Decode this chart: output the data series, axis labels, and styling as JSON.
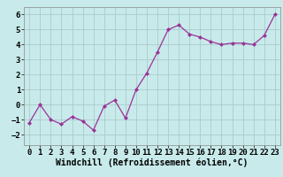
{
  "x": [
    0,
    1,
    2,
    3,
    4,
    5,
    6,
    7,
    8,
    9,
    10,
    11,
    12,
    13,
    14,
    15,
    16,
    17,
    18,
    19,
    20,
    21,
    22,
    23
  ],
  "y": [
    -1.2,
    0.0,
    -1.0,
    -1.3,
    -0.8,
    -1.1,
    -1.7,
    -0.1,
    0.3,
    -0.9,
    1.0,
    2.1,
    3.5,
    5.0,
    5.3,
    4.7,
    4.5,
    4.2,
    4.0,
    4.1,
    4.1,
    4.0,
    4.6,
    6.0
  ],
  "line_color": "#993399",
  "marker": "D",
  "marker_size": 2.0,
  "bg_color": "#c8eaea",
  "grid_color": "#aacccc",
  "xlabel": "Windchill (Refroidissement éolien,°C)",
  "xlabel_fontsize": 7,
  "tick_fontsize": 6.5,
  "xlim": [
    -0.5,
    23.5
  ],
  "ylim": [
    -2.7,
    6.5
  ],
  "yticks": [
    -2,
    -1,
    0,
    1,
    2,
    3,
    4,
    5,
    6
  ],
  "xticks": [
    0,
    1,
    2,
    3,
    4,
    5,
    6,
    7,
    8,
    9,
    10,
    11,
    12,
    13,
    14,
    15,
    16,
    17,
    18,
    19,
    20,
    21,
    22,
    23
  ]
}
